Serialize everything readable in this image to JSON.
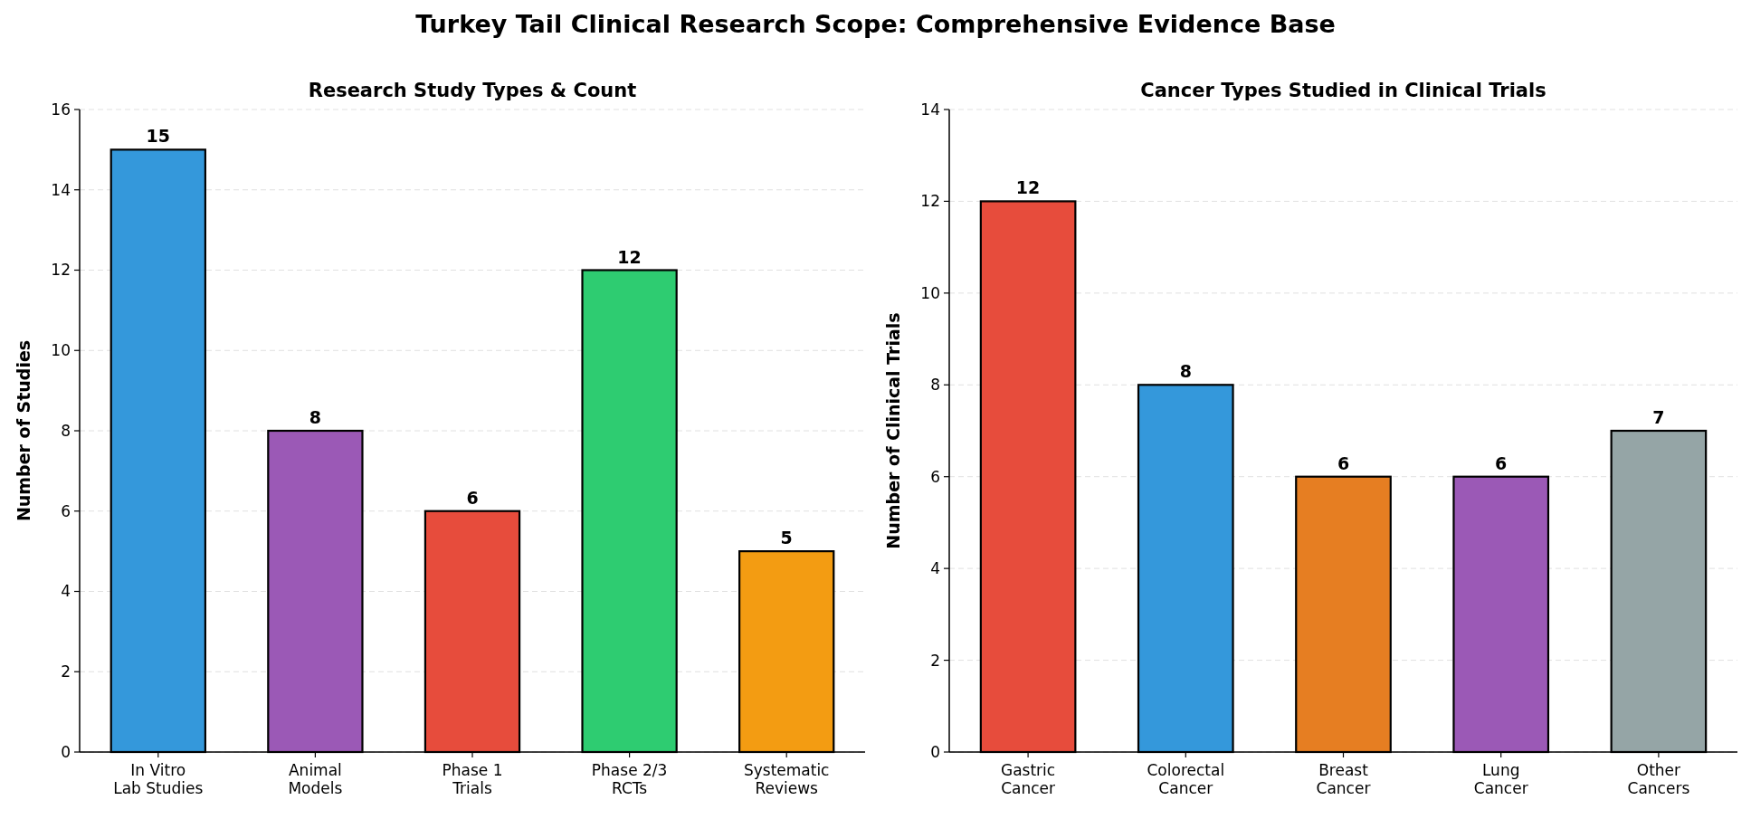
{
  "chart_data": [
    {
      "type": "bar",
      "title": "Research Study Types & Count",
      "ylabel": "Number of Studies",
      "categories": [
        "In Vitro\nLab Studies",
        "Animal\nModels",
        "Phase 1\nTrials",
        "Phase 2/3\nRCTs",
        "Systematic\nReviews"
      ],
      "values": [
        15,
        8,
        6,
        12,
        5
      ],
      "colors": [
        "#3498db",
        "#9b59b6",
        "#e74c3c",
        "#2ecc71",
        "#f39c12"
      ],
      "ylim": [
        0,
        16
      ],
      "yticks": [
        0,
        2,
        4,
        6,
        8,
        10,
        12,
        14,
        16
      ],
      "grid": "y",
      "data_labels": true,
      "annotations": [
        "Turkey Tail Clinical Research Scope: Comprehensive Evidence Base"
      ]
    },
    {
      "type": "bar",
      "title": "Cancer Types Studied in Clinical Trials",
      "ylabel": "Number of Clinical Trials",
      "categories": [
        "Gastric\nCancer",
        "Colorectal\nCancer",
        "Breast\nCancer",
        "Lung\nCancer",
        "Other\nCancers"
      ],
      "values": [
        12,
        8,
        6,
        6,
        7
      ],
      "colors": [
        "#e74c3c",
        "#3498db",
        "#e67e22",
        "#9b59b6",
        "#95a5a6"
      ],
      "ylim": [
        0,
        14
      ],
      "yticks": [
        0,
        2,
        4,
        6,
        8,
        10,
        12,
        14
      ],
      "grid": "y",
      "data_labels": true
    }
  ]
}
